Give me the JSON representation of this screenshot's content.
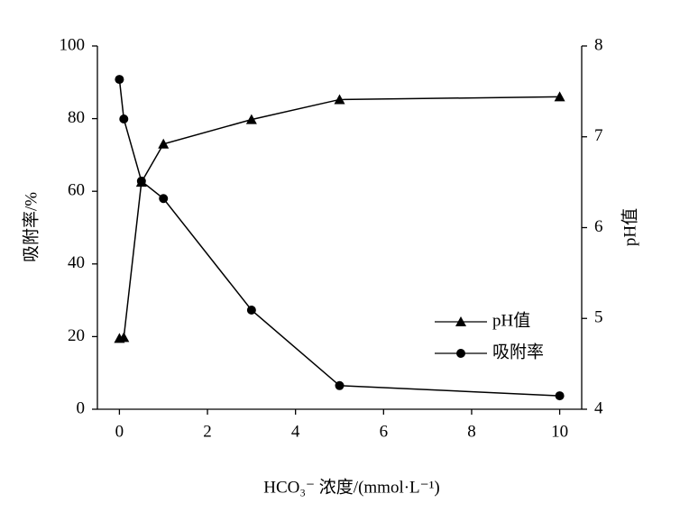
{
  "chart_data": {
    "type": "line",
    "x_label": "HCO₃⁻ 浓度/(mmol·L⁻¹)",
    "y_label": "吸附率/%",
    "y2_label": "pH值",
    "xlim": [
      -0.5,
      10.5
    ],
    "xticks": [
      0,
      2,
      4,
      6,
      8,
      10
    ],
    "ylim": [
      0,
      100
    ],
    "yticks": [
      0,
      20,
      40,
      60,
      80,
      100
    ],
    "y2lim": [
      4,
      8
    ],
    "y2ticks": [
      4,
      5,
      6,
      7,
      8
    ],
    "grid": false,
    "legend": "lower-right",
    "series": [
      {
        "name": "pH值",
        "color": "#000000",
        "marker": "triangle",
        "axis": "y2",
        "x": [
          0,
          0.1,
          0.5,
          1,
          3,
          5,
          10
        ],
        "values": [
          4.78,
          4.79,
          6.5,
          6.92,
          7.19,
          7.41,
          7.44
        ]
      },
      {
        "name": "吸附率",
        "color": "#000000",
        "marker": "circle",
        "x": [
          0,
          0.1,
          0.5,
          1,
          3,
          5,
          10
        ],
        "values": [
          90.8,
          79.9,
          62.8,
          58,
          27.3,
          6.5,
          3.7
        ]
      }
    ]
  }
}
